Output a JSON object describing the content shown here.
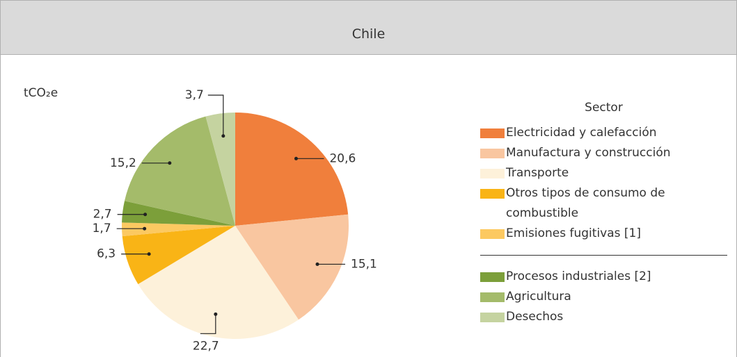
{
  "chart_data": {
    "type": "pie",
    "title": "Chile",
    "unit_label": "tCO₂e",
    "legend_title": "Sector",
    "categories": [
      "Electricidad y calefacción",
      "Manufactura y construcción",
      "Transporte",
      "Otros tipos de consumo de combustible",
      "Emisiones fugitivas [1]",
      "Procesos industriales [2]",
      "Agricultura",
      "Desechos"
    ],
    "values": [
      20.6,
      15.1,
      22.7,
      6.3,
      1.7,
      2.7,
      15.2,
      3.7
    ],
    "value_labels": [
      "20,6",
      "15,1",
      "22,7",
      "6,3",
      "1,7",
      "2,7",
      "15,2",
      "3,7"
    ],
    "colors": [
      "#f07f3c",
      "#f9c6a0",
      "#fdf1da",
      "#f9b416",
      "#fcc961",
      "#7c9f3a",
      "#a4bb6a",
      "#c5d3a0"
    ],
    "legend_position": "right"
  }
}
